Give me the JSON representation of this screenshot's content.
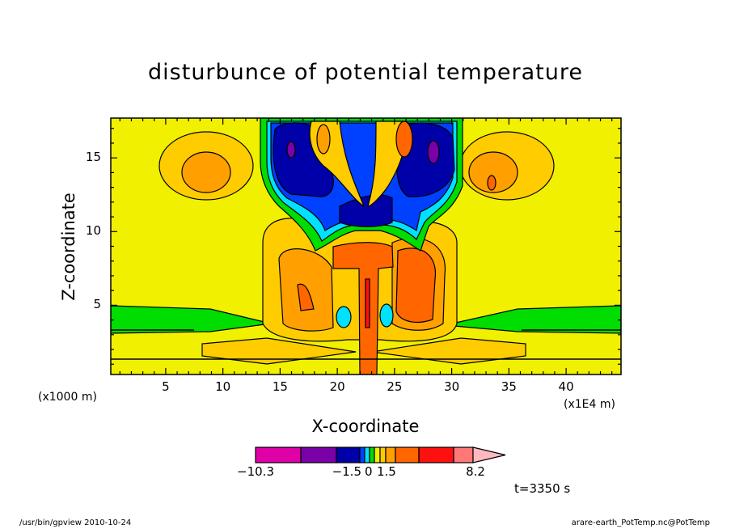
{
  "chart_data": {
    "type": "heatmap",
    "subtype": "filled-contour",
    "title": "disturbunce of potential temperature",
    "xlabel": "X-coordinate",
    "ylabel": "Z-coordinate",
    "x_unit": "(x1E4 m)",
    "y_unit": "(x1000 m)",
    "xlim": [
      0.2,
      44.8
    ],
    "ylim": [
      0.3,
      17.7
    ],
    "x_ticks": [
      5,
      10,
      15,
      20,
      25,
      30,
      35,
      40
    ],
    "y_ticks": [
      5,
      10,
      15
    ],
    "grid": false,
    "colorbar": {
      "labels": [
        "-10.3",
        "-1.5",
        "0",
        "1.5",
        "8.2"
      ],
      "colors": [
        "#e000a8",
        "#7a00a8",
        "#0000a8",
        "#0040ff",
        "#00e0ff",
        "#00dd00",
        "#f0f000",
        "#ffcc00",
        "#ffa000",
        "#ff6600",
        "#ff1010",
        "#ff7878"
      ],
      "widths": [
        56,
        44,
        29,
        6,
        6,
        6,
        7,
        7,
        12,
        29,
        43,
        24
      ],
      "overflow_color": "#ffb8c0"
    },
    "time_label": "t=3350 s"
  },
  "footer": {
    "left": "/usr/bin/gpview  2010-10-24",
    "right": "arare-earth_PotTemp.nc@PotTemp"
  }
}
